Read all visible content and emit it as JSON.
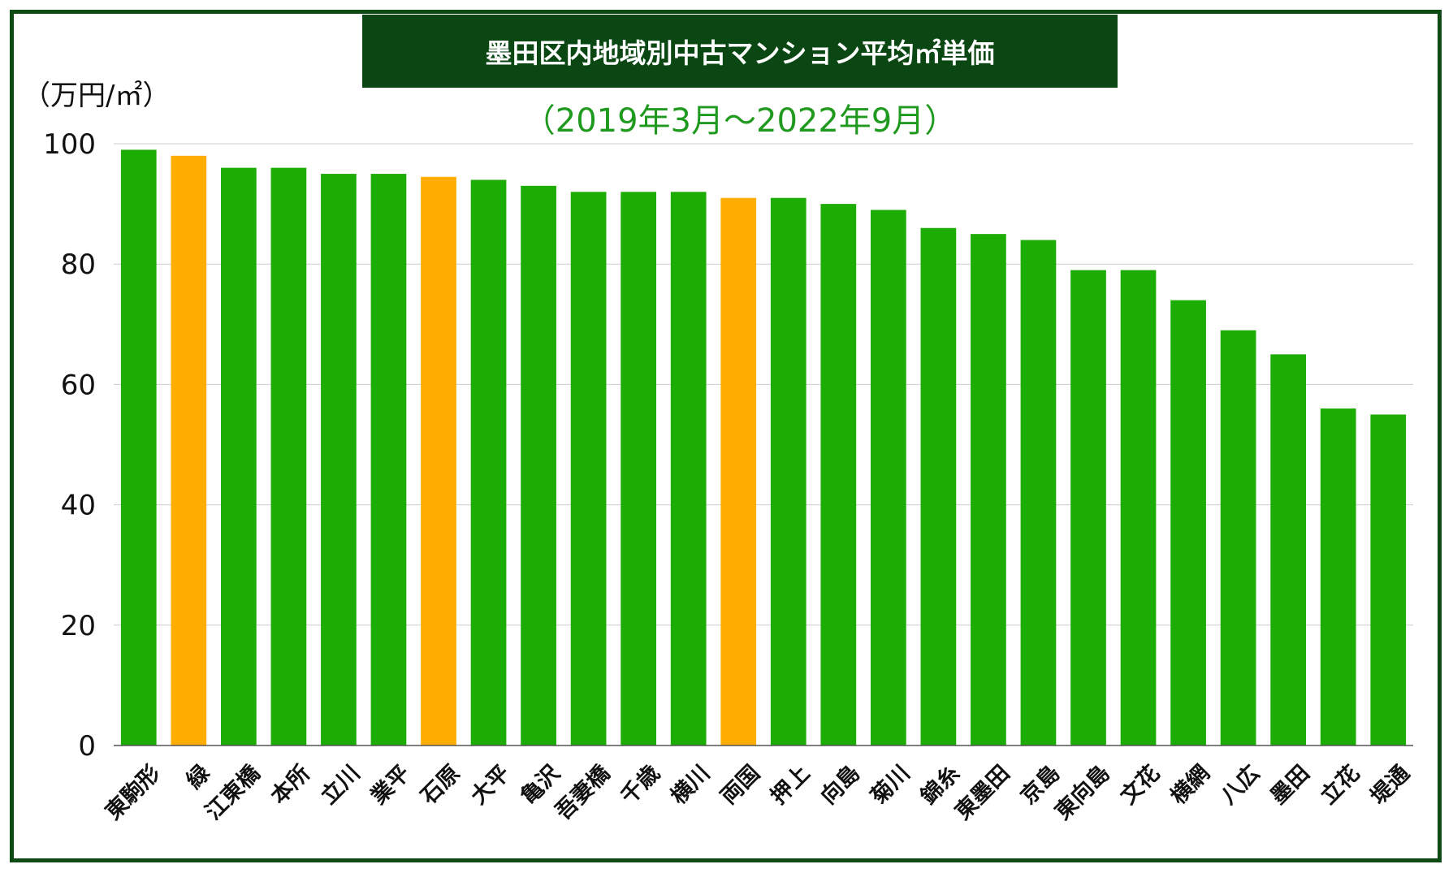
{
  "colors": {
    "primary": "#1cac03",
    "highlight": "#ffad00",
    "title_bg": "#0a4712",
    "frame": "#0d4a14",
    "subtitle": "#1f9a1f"
  },
  "chart_data": {
    "type": "bar",
    "title": "墨田区内地域別中古マンション平均㎡単価",
    "subtitle": "（2019年3月〜2022年9月）",
    "ylabel": "（万円/㎡）",
    "xlabel": "",
    "ylim": [
      0,
      100
    ],
    "yticks": [
      0,
      20,
      40,
      60,
      80,
      100
    ],
    "grid": true,
    "categories": [
      "東駒形",
      "緑",
      "江東橋",
      "本所",
      "立川",
      "業平",
      "石原",
      "大平",
      "亀沢",
      "吾妻橋",
      "千歳",
      "横川",
      "両国",
      "押上",
      "向島",
      "菊川",
      "錦糸",
      "東墨田",
      "京島",
      "東向島",
      "文花",
      "横網",
      "八広",
      "墨田",
      "立花",
      "堤通"
    ],
    "values": [
      99,
      98,
      96,
      96,
      95,
      95,
      94.5,
      94,
      93,
      92,
      92,
      92,
      91,
      91,
      90,
      89,
      86,
      85,
      84,
      79,
      79,
      74,
      69,
      65,
      56,
      55
    ],
    "highlighted": [
      "緑",
      "石原",
      "両国"
    ]
  }
}
